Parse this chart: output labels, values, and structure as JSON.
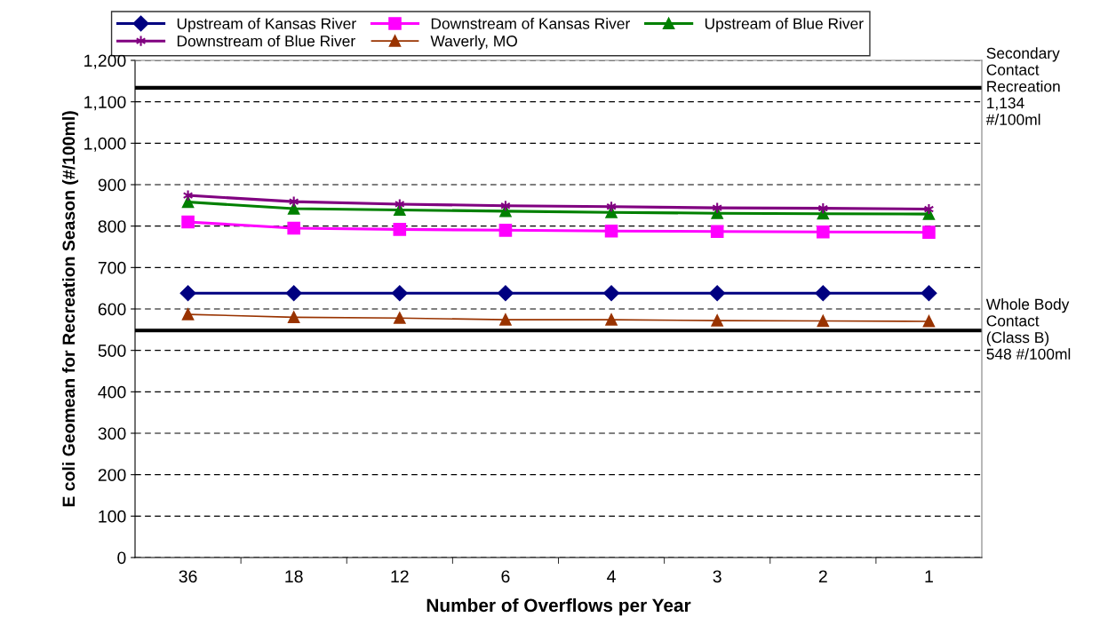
{
  "chart_data": {
    "type": "line",
    "xlabel": "Number of Overflows per Year",
    "ylabel": "E coli Geomean for Recreation Season (#/100ml)",
    "categories": [
      "36",
      "18",
      "12",
      "6",
      "4",
      "3",
      "2",
      "1"
    ],
    "series": [
      {
        "name": "Upstream of Kansas River",
        "color": "#000080",
        "marker": "diamond",
        "values": [
          638,
          638,
          638,
          638,
          638,
          638,
          638,
          638
        ]
      },
      {
        "name": "Downstream of Kansas River",
        "color": "#ff00ff",
        "marker": "square",
        "values": [
          810,
          795,
          792,
          790,
          788,
          787,
          786,
          785
        ]
      },
      {
        "name": "Upstream of Blue River",
        "color": "#008000",
        "marker": "triangle",
        "values": [
          858,
          842,
          839,
          836,
          833,
          831,
          830,
          829
        ]
      },
      {
        "name": "Downstream of Blue River",
        "color": "#800080",
        "marker": "cross",
        "values": [
          874,
          859,
          853,
          849,
          847,
          844,
          843,
          841
        ]
      },
      {
        "name": "Waverly, MO",
        "color": "#993300",
        "marker": "triangle",
        "values": [
          587,
          580,
          578,
          574,
          574,
          572,
          571,
          570
        ]
      }
    ],
    "ylim": [
      0,
      1200
    ],
    "yticks": [
      0,
      100,
      200,
      300,
      400,
      500,
      600,
      700,
      800,
      900,
      {
        "value": 1000,
        "label": "1,000"
      },
      {
        "value": 1100,
        "label": "1,100"
      },
      {
        "value": 1200,
        "label": "1,200"
      }
    ],
    "ref_lines": [
      {
        "axis": "y",
        "value": 1134,
        "label": "Secondary\nContact\nRecreation\n1,134\n#/100ml",
        "color": "#000000"
      },
      {
        "axis": "y",
        "value": 548,
        "label": "Whole Body\nContact\n(Class B)\n548 #/100ml",
        "color": "#000000"
      }
    ],
    "grid": "y",
    "legend": "top",
    "line_style": "solid"
  }
}
